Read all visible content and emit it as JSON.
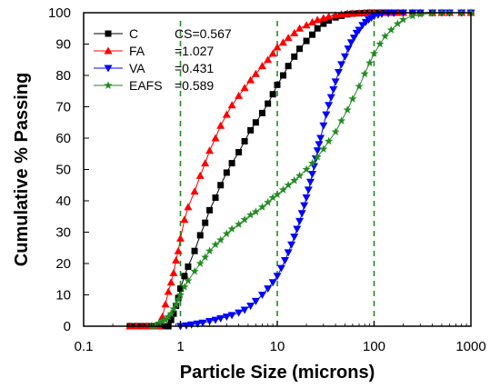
{
  "chart_data": {
    "type": "scatter",
    "xlabel": "Particle Size (microns)",
    "ylabel": "Cumulative % Passing",
    "x_scale": "log",
    "xlim": [
      0.1,
      1000
    ],
    "ylim": [
      0,
      100
    ],
    "x_ticks": [
      "0.1",
      "1",
      "10",
      "100",
      "1000"
    ],
    "y_ticks": [
      "0",
      "10",
      "20",
      "30",
      "40",
      "50",
      "60",
      "70",
      "80",
      "90",
      "100"
    ],
    "legend_position": "top-left",
    "reference_lines_x": [
      1,
      10,
      100
    ],
    "series": [
      {
        "name": "C",
        "cs_label": "CS=0.567",
        "marker": "square",
        "color": "#000000",
        "x": [
          0.3,
          0.35,
          0.4,
          0.45,
          0.5,
          0.55,
          0.6,
          0.65,
          0.7,
          0.75,
          0.8,
          0.85,
          0.9,
          0.95,
          1.0,
          1.1,
          1.2,
          1.4,
          1.6,
          1.8,
          2.0,
          2.3,
          2.6,
          3.0,
          3.4,
          4.0,
          4.6,
          5.3,
          6.0,
          7.0,
          8.0,
          9.0,
          10.0,
          11.5,
          13.0,
          15.0,
          17.0,
          20.0,
          23.0,
          26.0,
          30.0,
          34.0,
          40.0,
          46.0,
          53.0,
          60.0,
          70.0,
          80.0,
          90.0,
          100.0,
          115.0,
          130.0,
          150.0,
          175.0,
          200.0,
          250.0,
          300.0,
          400.0,
          500.0,
          600.0,
          800.0,
          1000.0
        ],
        "y": [
          0,
          0,
          0,
          0,
          0,
          0,
          0,
          0,
          0,
          0,
          2,
          4,
          6.5,
          9,
          12,
          16,
          19,
          24,
          29,
          33,
          37,
          41,
          45,
          49,
          52,
          55.5,
          59,
          62.5,
          65,
          68,
          71,
          74,
          77,
          80,
          83,
          86,
          88.5,
          91,
          93,
          95,
          96.5,
          97.5,
          98.5,
          99,
          99.5,
          99.7,
          99.8,
          99.9,
          100,
          100,
          100,
          100,
          100,
          100,
          100,
          100,
          100,
          100,
          100,
          100,
          100,
          100
        ]
      },
      {
        "name": "FA",
        "cs_label": "=1.027",
        "marker": "triangle-up",
        "color": "#ff0000",
        "x": [
          0.3,
          0.35,
          0.4,
          0.45,
          0.5,
          0.55,
          0.6,
          0.65,
          0.7,
          0.75,
          0.8,
          0.85,
          0.9,
          0.95,
          1.0,
          1.1,
          1.2,
          1.4,
          1.6,
          1.8,
          2.0,
          2.3,
          2.6,
          3.0,
          3.4,
          4.0,
          4.6,
          5.3,
          6.0,
          7.0,
          8.0,
          9.0,
          10.0,
          11.5,
          13.0,
          15.0,
          17.0,
          20.0,
          23.0,
          26.0,
          30.0,
          34.0,
          40.0,
          46.0,
          53.0,
          60.0,
          70.0,
          80.0,
          90.0,
          100.0,
          115.0,
          130.0,
          150.0,
          175.0,
          200.0,
          250.0,
          300.0,
          400.0,
          500.0,
          600.0,
          800.0,
          1000.0
        ],
        "y": [
          0,
          0,
          0,
          0,
          0,
          0,
          0,
          3,
          7,
          11,
          14,
          17,
          21,
          24,
          28,
          34,
          38,
          43,
          48,
          52,
          56,
          60,
          64,
          67.5,
          70.5,
          73.5,
          76,
          78.5,
          80.5,
          83,
          85,
          87,
          89,
          90.5,
          92,
          93.5,
          95,
          96,
          97,
          97.7,
          98.3,
          98.8,
          99.2,
          99.5,
          99.7,
          99.8,
          99.9,
          100,
          100,
          100,
          100,
          100,
          100,
          100,
          100,
          100,
          100,
          100,
          100,
          100,
          100,
          100
        ]
      },
      {
        "name": "VA",
        "cs_label": "=0.431",
        "marker": "triangle-down",
        "color": "#0000ff",
        "x": [
          1.0,
          1.15,
          1.3,
          1.5,
          1.7,
          2.0,
          2.3,
          2.6,
          3.0,
          3.4,
          4.0,
          4.6,
          5.3,
          6.0,
          7.0,
          8.0,
          9.0,
          10.0,
          11.0,
          12.0,
          13.0,
          14.0,
          15.0,
          16.0,
          17.0,
          18.0,
          19.0,
          20.0,
          21.0,
          22.0,
          23.0,
          24.0,
          25.0,
          26.0,
          27.0,
          28.0,
          30.0,
          32.0,
          34.0,
          36.0,
          38.0,
          40.0,
          43.0,
          46.0,
          50.0,
          54.0,
          58.0,
          62.0,
          66.0,
          70.0,
          76.0,
          82.0,
          88.0,
          94.0,
          100.0,
          110.0,
          120.0,
          140.0,
          160.0,
          200.0,
          250.0,
          300.0,
          400.0,
          500.0,
          600.0,
          800.0,
          1000.0
        ],
        "y": [
          0,
          0.2,
          0.5,
          0.8,
          1.1,
          1.6,
          2,
          2.5,
          3,
          3.5,
          4.3,
          5.2,
          6.5,
          8,
          10,
          12,
          14,
          16,
          18.5,
          21,
          23.5,
          26,
          28.5,
          31,
          33.5,
          36,
          38.5,
          41,
          43.5,
          46,
          48.5,
          51,
          53.5,
          56,
          58,
          60,
          64,
          67.5,
          70.5,
          73,
          75.5,
          78,
          81,
          83.5,
          86,
          88.5,
          90.5,
          92,
          93.5,
          94.5,
          96,
          97,
          97.8,
          98.4,
          98.9,
          99.3,
          99.6,
          99.8,
          99.9,
          100,
          100,
          100,
          100,
          100,
          100,
          100,
          100
        ]
      },
      {
        "name": "EAFS",
        "cs_label": "=0.589",
        "marker": "star",
        "color": "#228b22",
        "x": [
          0.5,
          0.55,
          0.6,
          0.65,
          0.7,
          0.75,
          0.8,
          0.85,
          0.9,
          0.95,
          1.0,
          1.1,
          1.2,
          1.4,
          1.6,
          1.8,
          2.0,
          2.3,
          2.6,
          3.0,
          3.4,
          4.0,
          4.6,
          5.3,
          6.0,
          7.0,
          8.0,
          9.0,
          10.0,
          11.5,
          13.0,
          15.0,
          17.0,
          20.0,
          23.0,
          26.0,
          30.0,
          34.0,
          40.0,
          46.0,
          53.0,
          60.0,
          70.0,
          80.0,
          90.0,
          100.0,
          115.0,
          130.0,
          150.0,
          175.0,
          200.0,
          250.0,
          300.0,
          400.0,
          500.0,
          600.0,
          800.0,
          1000.0
        ],
        "y": [
          0,
          0,
          1,
          1.5,
          2,
          3,
          4,
          5.5,
          7,
          8.5,
          10,
          12.5,
          14.5,
          17.5,
          20,
          22,
          24,
          26,
          27.5,
          29.5,
          31,
          32.5,
          34,
          35.5,
          36.5,
          38,
          39.5,
          41,
          42,
          43.5,
          45,
          46.5,
          48,
          50,
          52,
          54,
          56.5,
          59,
          62,
          65.5,
          69,
          72.5,
          76.5,
          80.5,
          84,
          87,
          90,
          92.5,
          94.5,
          96.5,
          97.8,
          99,
          99.5,
          99.8,
          100,
          100,
          100,
          100
        ]
      }
    ]
  }
}
